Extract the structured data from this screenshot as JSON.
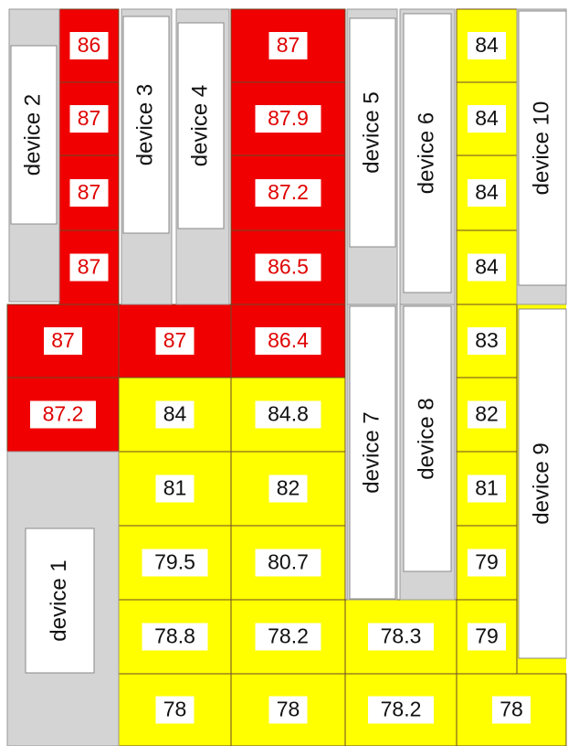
{
  "devices": [
    {
      "label": "device 1"
    },
    {
      "label": "device 2"
    },
    {
      "label": "device 3"
    },
    {
      "label": "device 4"
    },
    {
      "label": "device 5"
    },
    {
      "label": "device 6"
    },
    {
      "label": "device 7"
    },
    {
      "label": "device 8"
    },
    {
      "label": "device 9"
    },
    {
      "label": "device 10"
    }
  ],
  "cells": [
    {
      "text": "86",
      "color": "#f00000"
    },
    {
      "text": "87",
      "color": "#f00000"
    },
    {
      "text": "87",
      "color": "#f00000"
    },
    {
      "text": "87",
      "color": "#f00000"
    },
    {
      "text": "87",
      "color": "#f00000"
    },
    {
      "text": "87.2",
      "color": "#f00000"
    },
    {
      "text": "87",
      "color": "#f00000"
    },
    {
      "text": "84",
      "color": "#ffff00"
    },
    {
      "text": "81",
      "color": "#ffff00"
    },
    {
      "text": "79.5",
      "color": "#ffff00"
    },
    {
      "text": "78.8",
      "color": "#ffff00"
    },
    {
      "text": "78",
      "color": "#ffff00"
    },
    {
      "text": "87",
      "color": "#f00000"
    },
    {
      "text": "87.9",
      "color": "#f00000"
    },
    {
      "text": "87.2",
      "color": "#f00000"
    },
    {
      "text": "86.5",
      "color": "#f00000"
    },
    {
      "text": "86.4",
      "color": "#f00000"
    },
    {
      "text": "84.8",
      "color": "#ffff00"
    },
    {
      "text": "82",
      "color": "#ffff00"
    },
    {
      "text": "80.7",
      "color": "#ffff00"
    },
    {
      "text": "78.2",
      "color": "#ffff00"
    },
    {
      "text": "78",
      "color": "#ffff00"
    },
    {
      "text": "78.3",
      "color": "#ffff00"
    },
    {
      "text": "78.2",
      "color": "#ffff00"
    },
    {
      "text": "84",
      "color": "#ffff00"
    },
    {
      "text": "84",
      "color": "#ffff00"
    },
    {
      "text": "84",
      "color": "#ffff00"
    },
    {
      "text": "84",
      "color": "#ffff00"
    },
    {
      "text": "83",
      "color": "#ffff00"
    },
    {
      "text": "82",
      "color": "#ffff00"
    },
    {
      "text": "81",
      "color": "#ffff00"
    },
    {
      "text": "79",
      "color": "#ffff00"
    },
    {
      "text": "79",
      "color": "#ffff00"
    },
    {
      "text": "78",
      "color": "#ffff00"
    }
  ]
}
